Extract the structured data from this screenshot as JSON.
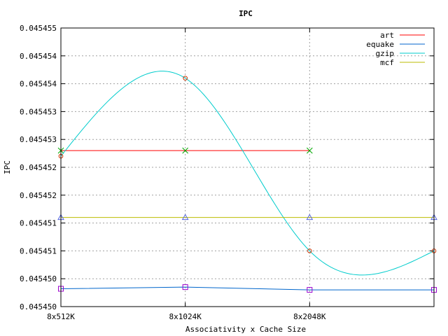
{
  "chart_data": {
    "type": "line",
    "title": "IPC",
    "xlabel": "Associativity x Cache Size",
    "ylabel": "IPC",
    "categories": [
      "8x512K",
      "8x1024K",
      "8x2048K",
      ""
    ],
    "x": [
      0,
      1,
      2,
      3
    ],
    "xlim": [
      0,
      3
    ],
    "ylim": [
      0.04545,
      0.045455
    ],
    "yticks": [
      0.04545,
      0.0454505,
      0.045451,
      0.0454515,
      0.045452,
      0.0454525,
      0.045453,
      0.0454535,
      0.045454,
      0.0454545,
      0.045455
    ],
    "ytick_labels": [
      "0.045450",
      "0.045450",
      "0.045451",
      "0.045451",
      "0.045452",
      "0.045452",
      "0.045453",
      "0.045453",
      "0.045454",
      "0.045454",
      "0.045455"
    ],
    "grid": true,
    "legend_position": "top-right",
    "series": [
      {
        "name": "art",
        "color": "#ff0000",
        "marker_color": "#00aa00",
        "marker": "x",
        "x": [
          0,
          1,
          2
        ],
        "values": [
          0.0454528,
          0.0454528,
          0.0454528
        ]
      },
      {
        "name": "equake",
        "color": "#0066cc",
        "marker_color": "#9900cc",
        "marker": "square",
        "x": [
          0,
          1,
          2,
          3
        ],
        "values": [
          0.04545032,
          0.04545035,
          0.0454503,
          0.0454503
        ]
      },
      {
        "name": "gzip",
        "color": "#00cccc",
        "marker_color": "#cc3300",
        "marker": "circle",
        "x": [
          0,
          1,
          2,
          3
        ],
        "values": [
          0.0454527,
          0.0454541,
          0.045451,
          0.045451
        ],
        "smooth": true
      },
      {
        "name": "mcf",
        "color": "#bbbb00",
        "marker_color": "#5566dd",
        "marker": "triangle",
        "x": [
          0,
          1,
          2,
          3
        ],
        "values": [
          0.0454516,
          0.0454516,
          0.0454516,
          0.0454516
        ]
      }
    ]
  }
}
